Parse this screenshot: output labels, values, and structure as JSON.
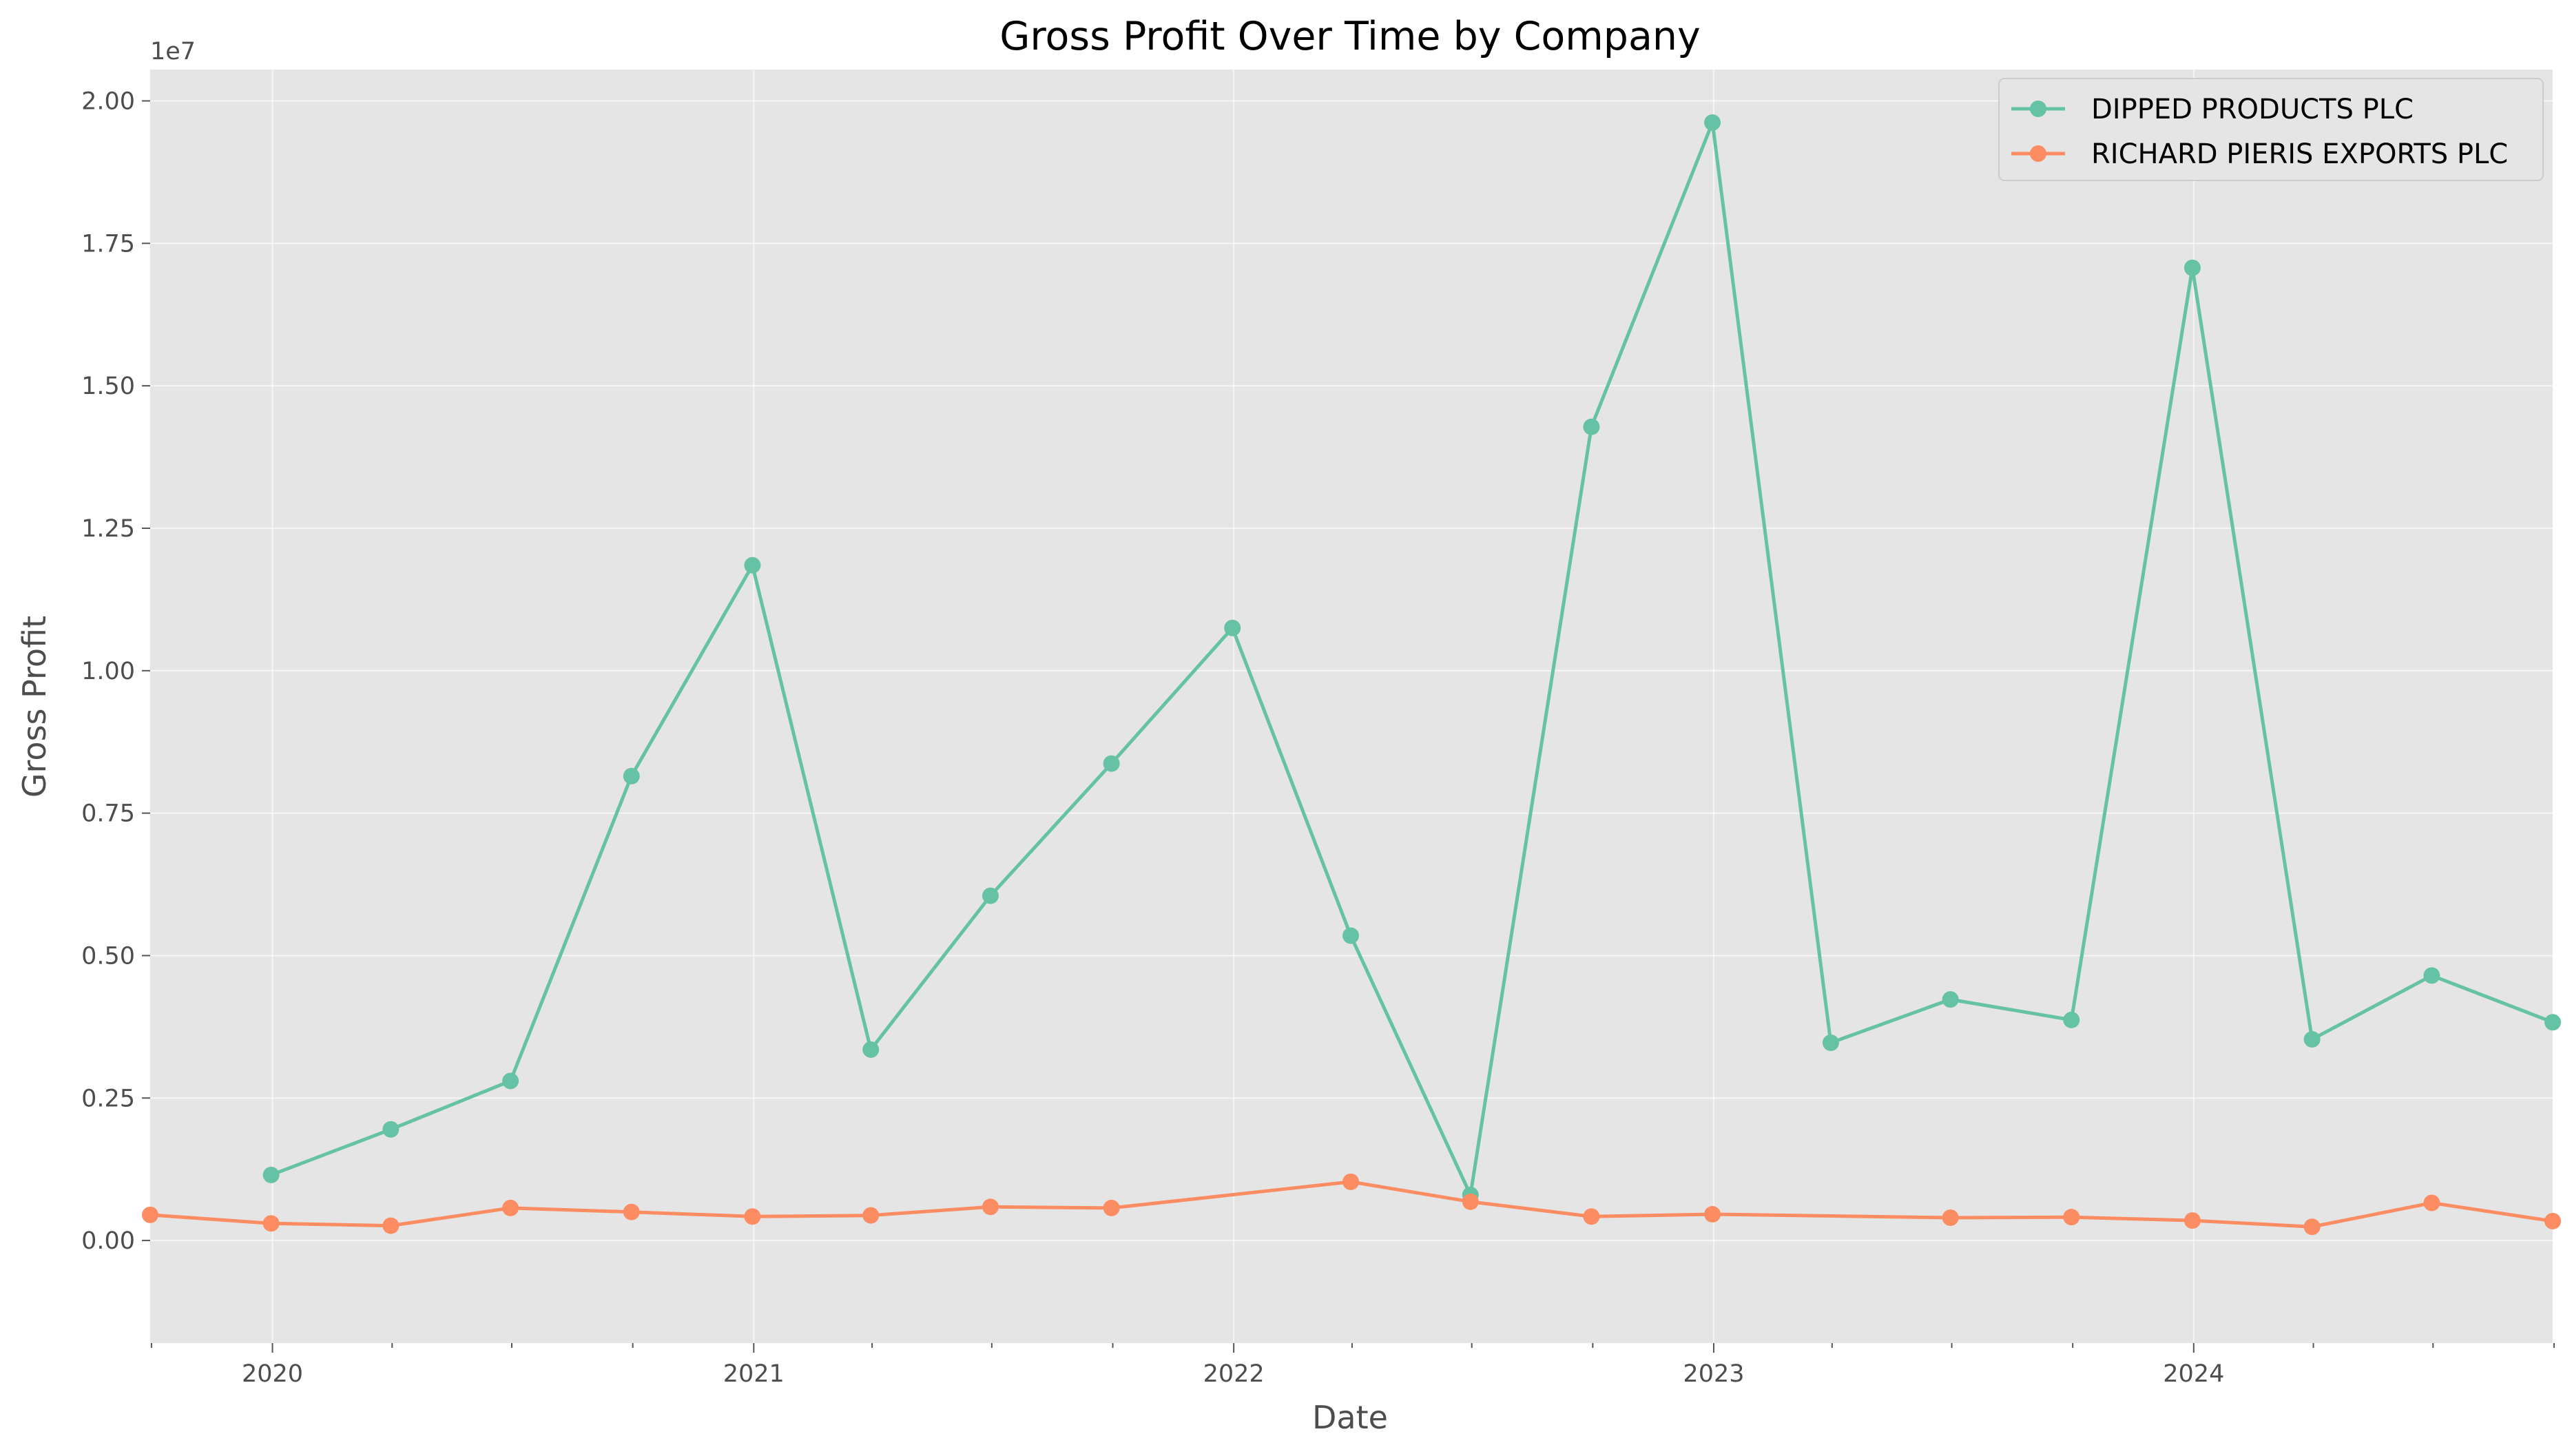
{
  "chart_data": {
    "type": "line",
    "title": "Gross Profit Over Time by Company",
    "xlabel": "Date",
    "ylabel": "Gross Profit",
    "y_scale_label": "1e7",
    "ylim": [
      -1800000,
      20550000
    ],
    "xlim": [
      "2019-09-30",
      "2024-09-30"
    ],
    "y_ticks": [
      0,
      2500000,
      5000000,
      7500000,
      10000000,
      12500000,
      15000000,
      17500000,
      20000000
    ],
    "y_tick_labels": [
      "0.00",
      "0.25",
      "0.50",
      "0.75",
      "1.00",
      "1.25",
      "1.50",
      "1.75",
      "2.00"
    ],
    "x_major_ticks": [
      {
        "date": "2020-01-01",
        "label": "2020"
      },
      {
        "date": "2021-01-01",
        "label": "2021"
      },
      {
        "date": "2022-01-01",
        "label": "2022"
      },
      {
        "date": "2023-01-01",
        "label": "2023"
      },
      {
        "date": "2024-01-01",
        "label": "2024"
      }
    ],
    "x_minor_ticks": [
      "2019-10-01",
      "2020-04-01",
      "2020-07-01",
      "2020-10-01",
      "2021-04-01",
      "2021-07-01",
      "2021-10-01",
      "2022-04-01",
      "2022-07-01",
      "2022-10-01",
      "2023-04-01",
      "2023-07-01",
      "2023-10-01",
      "2024-04-01",
      "2024-07-01",
      "2024-10-01"
    ],
    "grid": true,
    "legend_position": "top-right",
    "series": [
      {
        "name": "DIPPED PRODUCTS PLC",
        "color": "#66c2a5",
        "x": [
          "2019-12-31",
          "2020-03-31",
          "2020-06-30",
          "2020-09-30",
          "2020-12-31",
          "2021-03-31",
          "2021-06-30",
          "2021-09-30",
          "2021-12-31",
          "2022-03-31",
          "2022-06-30",
          "2022-09-30",
          "2022-12-31",
          "2023-03-31",
          "2023-06-30",
          "2023-09-30",
          "2023-12-31",
          "2024-03-31",
          "2024-06-30",
          "2024-09-30"
        ],
        "values": [
          1150000,
          1950000,
          2800000,
          8150000,
          11850000,
          3350000,
          6050000,
          8370000,
          10750000,
          5350000,
          800000,
          14280000,
          19620000,
          3470000,
          4230000,
          3870000,
          17070000,
          3530000,
          4650000,
          3830000
        ]
      },
      {
        "name": "RICHARD PIERIS EXPORTS PLC",
        "color": "#fc8d62",
        "x": [
          "2019-09-30",
          "2019-12-31",
          "2020-03-31",
          "2020-06-30",
          "2020-09-30",
          "2020-12-31",
          "2021-03-31",
          "2021-06-30",
          "2021-09-30",
          "2022-03-31",
          "2022-06-30",
          "2022-09-30",
          "2022-12-31",
          "2023-06-30",
          "2023-09-30",
          "2023-12-31",
          "2024-03-31",
          "2024-06-30",
          "2024-09-30"
        ],
        "values": [
          450000,
          300000,
          260000,
          570000,
          500000,
          420000,
          440000,
          590000,
          570000,
          1030000,
          680000,
          420000,
          460000,
          400000,
          410000,
          350000,
          240000,
          660000,
          340000
        ]
      }
    ]
  }
}
